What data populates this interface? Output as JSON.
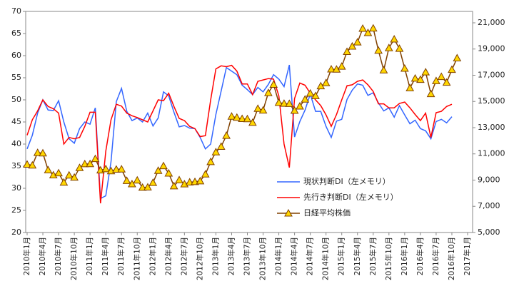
{
  "chart_data": {
    "type": "line",
    "categories": [
      "2010年1月",
      null,
      null,
      "2010年4月",
      null,
      null,
      "2010年7月",
      null,
      null,
      "2010年10月",
      null,
      null,
      "2011年1月",
      null,
      null,
      "2011年4月",
      null,
      null,
      "2011年7月",
      null,
      null,
      "2011年10月",
      null,
      null,
      "2012年1月",
      null,
      null,
      "2012年4月",
      null,
      null,
      "2012年7月",
      null,
      null,
      "2012年10月",
      null,
      null,
      "2013年1月",
      null,
      null,
      "2013年4月",
      null,
      null,
      "2013年7月",
      null,
      null,
      "2013年10月",
      null,
      null,
      "2014年1月",
      null,
      null,
      "2014年4月",
      null,
      null,
      "2014年7月",
      null,
      null,
      "2014年10月",
      null,
      null,
      "2015年1月",
      null,
      null,
      "2015年4月",
      null,
      null,
      "2015年7月",
      null,
      null,
      "2015年10月",
      null,
      null,
      "2016年1月",
      null,
      null,
      "2016年4月",
      null,
      null,
      "2016年7月",
      null,
      null,
      "2016年10月",
      null,
      null,
      "2017年1月"
    ],
    "series": [
      {
        "name": "現状判断DI（左メモリ）",
        "color": "#3366ff",
        "axis": "y",
        "values": [
          38.9,
          42,
          47,
          50,
          47.7,
          47.6,
          49.8,
          45,
          41.2,
          40.2,
          43.5,
          45,
          44.5,
          48.2,
          27.7,
          28.3,
          36,
          49.6,
          52.6,
          47.4,
          45.3,
          45.9,
          45,
          47,
          44.1,
          45.9,
          51.8,
          50.9,
          47.2,
          43.9,
          44.2,
          43.6,
          43.5,
          41.5,
          38.9,
          40,
          46.7,
          52,
          57.3,
          56.5,
          55.7,
          53.3,
          52.3,
          51.2,
          52.8,
          51.8,
          53.5,
          55.7,
          54.7,
          53,
          57.9,
          41.6,
          45.1,
          47.7,
          51.3,
          47.4,
          47.4,
          44,
          41.5,
          45.2,
          45.6,
          50.1,
          52.2,
          53.6,
          53.3,
          51,
          51.6,
          49.3,
          47.5,
          48.2,
          46.1,
          48.7,
          46.6,
          44.6,
          45.4,
          43.5,
          43,
          41.2,
          45.1,
          45.6,
          44.8,
          46.2,
          null,
          null,
          null
        ]
      },
      {
        "name": "先行き判断DI（左メモリ）",
        "color": "#ff0000",
        "axis": "y",
        "values": [
          42,
          45.5,
          47.5,
          50,
          48.5,
          48,
          47,
          40,
          41.5,
          41.2,
          41.5,
          44,
          47.2,
          47.2,
          26.6,
          38.4,
          45.5,
          49,
          48.6,
          47,
          46.4,
          46,
          45.5,
          45,
          47.5,
          50,
          49.8,
          51.5,
          48.5,
          45.8,
          45.3,
          44,
          43.5,
          41.7,
          41.9,
          50,
          57,
          57.7,
          57.5,
          57.8,
          56.5,
          53.6,
          53.6,
          51.2,
          54.2,
          54.5,
          54.8,
          54.7,
          50.9,
          40,
          34.7,
          50.3,
          53.8,
          53.3,
          51.5,
          50,
          48.7,
          46.6,
          44,
          46.7,
          50,
          53.2,
          53.4,
          54.2,
          54.5,
          53.4,
          51.9,
          49.1,
          49.1,
          48.2,
          48.2,
          49.2,
          49.5,
          48.2,
          46.7,
          45.3,
          47,
          41.5,
          47.1,
          47.4,
          48.5,
          49,
          null,
          null,
          null
        ]
      },
      {
        "name": "日経平均株価",
        "color": "#804000",
        "marker_color": "#ffd700",
        "axis": "y2",
        "values": [
          10198,
          10126,
          11089,
          11057,
          9768,
          9382,
          9537,
          8824,
          9369,
          9202,
          9937,
          10228,
          10237,
          10624,
          9755,
          9849,
          9693,
          9816,
          9833,
          8955,
          8700,
          8988,
          8434,
          8455,
          8802,
          9723,
          10083,
          9520,
          8542,
          9006,
          8695,
          8839,
          8870,
          8928,
          9446,
          10395,
          11138,
          11559,
          12397,
          13860,
          13774,
          13677,
          13668,
          13388,
          14455,
          14327,
          15661,
          16291,
          14914,
          14841,
          14827,
          14304,
          14632,
          15162,
          15620,
          15425,
          16173,
          16413,
          17459,
          17450,
          17674,
          18797,
          19206,
          19520,
          20563,
          20235,
          20585,
          18890,
          17388,
          19083,
          19747,
          19033,
          17518,
          16026,
          16759,
          16666,
          17235,
          15575,
          16569,
          16887,
          16449,
          17425,
          18308,
          null,
          null
        ]
      }
    ],
    "ylim": [
      20,
      70
    ],
    "yticks": [
      20,
      25,
      30,
      35,
      40,
      45,
      50,
      55,
      60,
      65,
      70
    ],
    "y2lim": [
      5000,
      21870
    ],
    "y2ticks": [
      {
        "value": 5000,
        "label": "5,000"
      },
      {
        "value": 7000,
        "label": "7,000"
      },
      {
        "value": 9000,
        "label": "9,000"
      },
      {
        "value": 11000,
        "label": "11,000"
      },
      {
        "value": 13000,
        "label": "13,000"
      },
      {
        "value": 15000,
        "label": "15,000"
      },
      {
        "value": 17000,
        "label": "17,000"
      },
      {
        "value": 19000,
        "label": "19,000"
      },
      {
        "value": 21000,
        "label": "21,000"
      }
    ],
    "grid": false
  }
}
